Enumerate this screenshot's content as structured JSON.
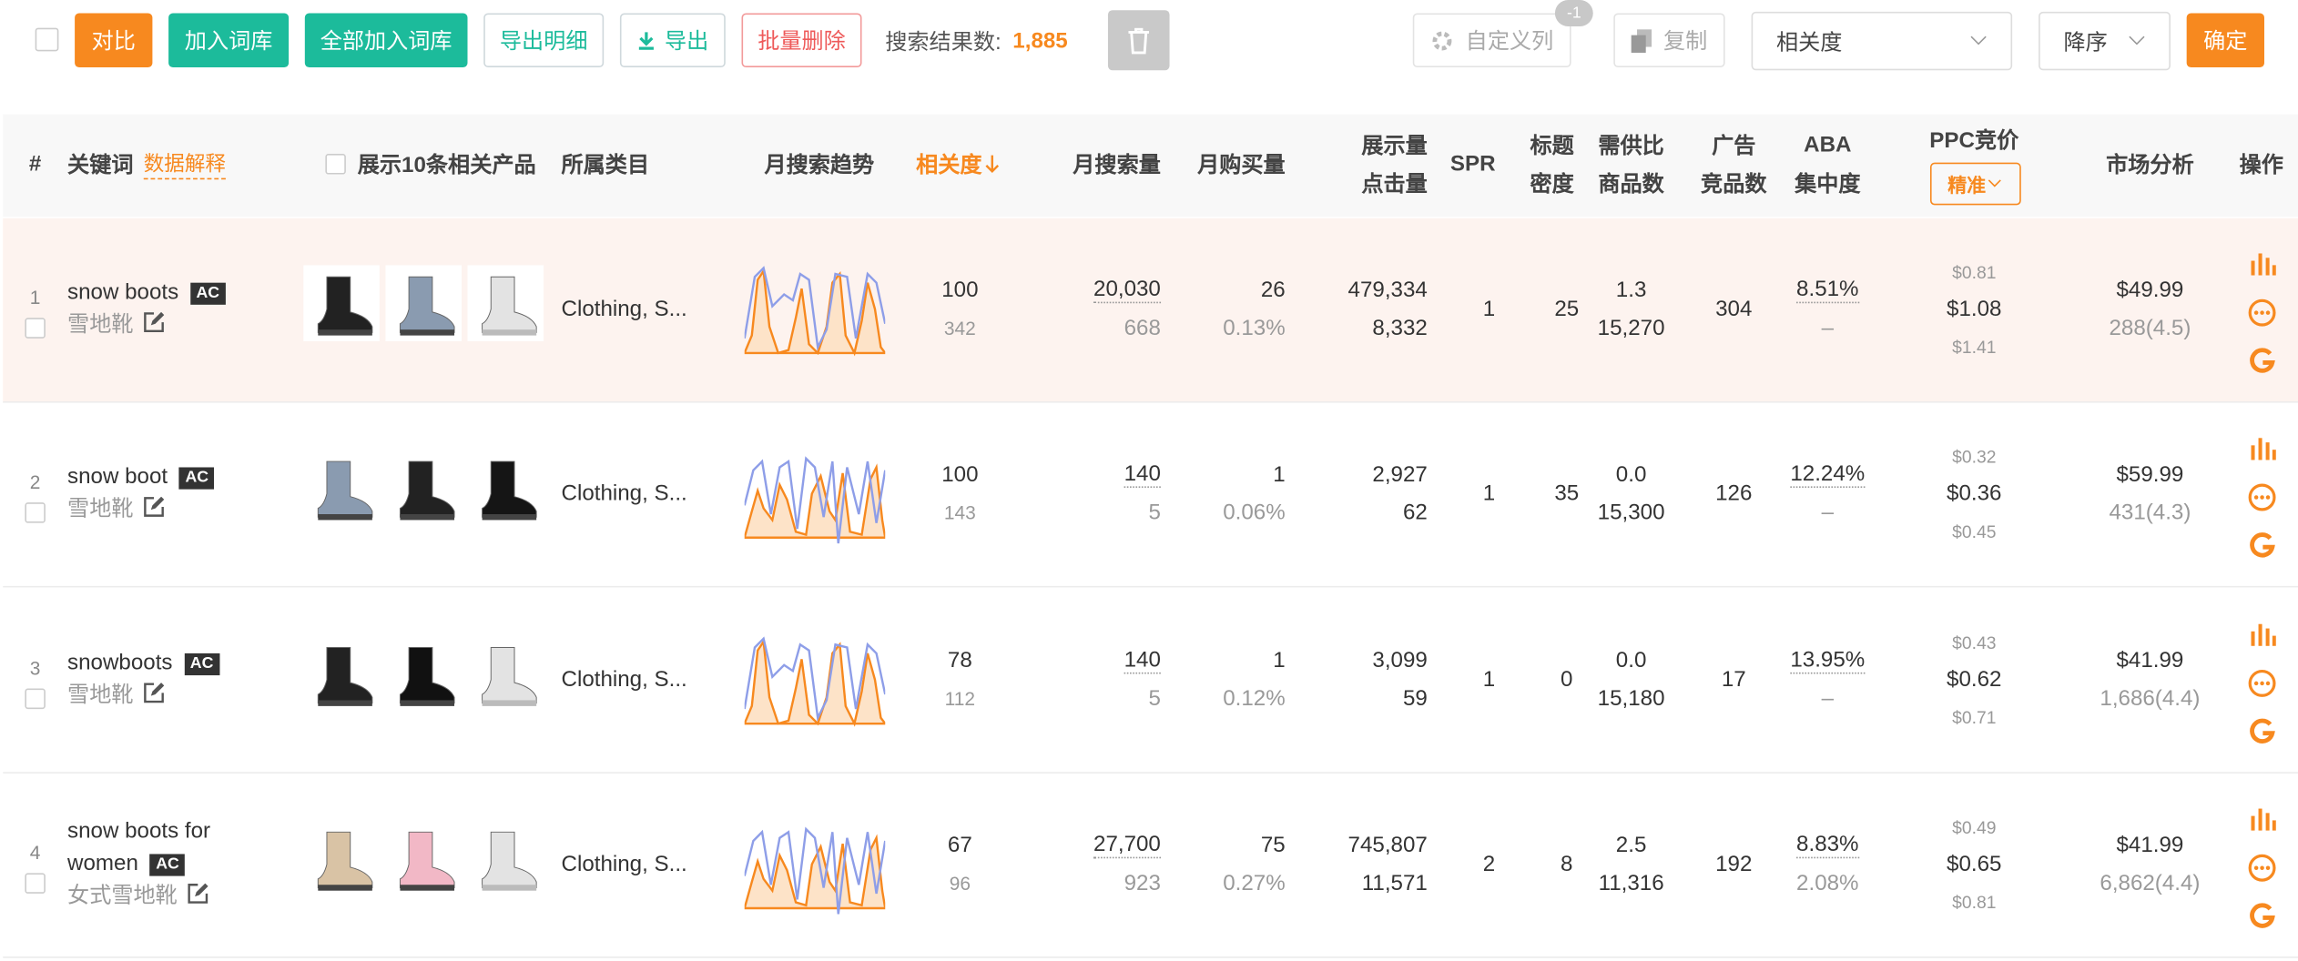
{
  "toolbar": {
    "compare": "对比",
    "add_to_library": "加入词库",
    "add_all_to_library": "全部加入词库",
    "export_details": "导出明细",
    "export": "导出",
    "batch_delete": "批量删除",
    "result_label": "搜索结果数:",
    "result_count": "1,885",
    "custom_columns": "自定义列",
    "custom_columns_badge": "-1",
    "copy": "复制",
    "sort_field": "相关度",
    "sort_order": "降序",
    "confirm": "确定"
  },
  "table": {
    "headers": {
      "index": "#",
      "keyword": "关键词",
      "data_explain": "数据解释",
      "show_products": "展示10条相关产品",
      "category": "所属类目",
      "trend": "月搜索趋势",
      "relevance": "相关度",
      "search_volume": "月搜索量",
      "purchases": "月购买量",
      "impressions": "展示量",
      "clicks": "点击量",
      "spr": "SPR",
      "title_density": [
        "标题",
        "密度"
      ],
      "supply_ratio": [
        "需供比",
        "商品数"
      ],
      "ads": [
        "广告",
        "竞品数"
      ],
      "aba": [
        "ABA",
        "集中度"
      ],
      "ppc": "PPC竞价",
      "ppc_match": "精准",
      "market": "市场分析",
      "actions": "操作"
    },
    "rows": [
      {
        "index": "1",
        "keyword": "snow boots",
        "badge": "AC",
        "translation": "雪地靴",
        "category": "Clothing, S...",
        "relevance": [
          "100",
          "342"
        ],
        "search_volume": [
          "20,030",
          "668"
        ],
        "purchases": [
          "26",
          "0.13%"
        ],
        "impressions_clicks": [
          "479,334",
          "8,332"
        ],
        "spr": "1",
        "title_density": "25",
        "supply_ratio": [
          "1.3",
          "15,270"
        ],
        "ads": "304",
        "aba": [
          "8.51%",
          "–"
        ],
        "ppc": [
          "$0.81",
          "$1.08",
          "$1.41"
        ],
        "market": [
          "$49.99",
          "288(4.5)"
        ]
      },
      {
        "index": "2",
        "keyword": "snow boot",
        "badge": "AC",
        "translation": "雪地靴",
        "category": "Clothing, S...",
        "relevance": [
          "100",
          "143"
        ],
        "search_volume": [
          "140",
          "5"
        ],
        "purchases": [
          "1",
          "0.06%"
        ],
        "impressions_clicks": [
          "2,927",
          "62"
        ],
        "spr": "1",
        "title_density": "35",
        "supply_ratio": [
          "0.0",
          "15,300"
        ],
        "ads": "126",
        "aba": [
          "12.24%",
          "–"
        ],
        "ppc": [
          "$0.32",
          "$0.36",
          "$0.45"
        ],
        "market": [
          "$59.99",
          "431(4.3)"
        ]
      },
      {
        "index": "3",
        "keyword": "snowboots",
        "badge": "AC",
        "translation": "雪地靴",
        "category": "Clothing, S...",
        "relevance": [
          "78",
          "112"
        ],
        "search_volume": [
          "140",
          "5"
        ],
        "purchases": [
          "1",
          "0.12%"
        ],
        "impressions_clicks": [
          "3,099",
          "59"
        ],
        "spr": "1",
        "title_density": "0",
        "supply_ratio": [
          "0.0",
          "15,180"
        ],
        "ads": "17",
        "aba": [
          "13.95%",
          "–"
        ],
        "ppc": [
          "$0.43",
          "$0.62",
          "$0.71"
        ],
        "market": [
          "$41.99",
          "1,686(4.4)"
        ]
      },
      {
        "index": "4",
        "keyword": "snow boots for women",
        "badge": "AC",
        "translation": "女式雪地靴",
        "category": "Clothing, S...",
        "relevance": [
          "67",
          "96"
        ],
        "search_volume": [
          "27,700",
          "923"
        ],
        "purchases": [
          "75",
          "0.27%"
        ],
        "impressions_clicks": [
          "745,807",
          "11,571"
        ],
        "spr": "2",
        "title_density": "8",
        "supply_ratio": [
          "2.5",
          "11,316"
        ],
        "ads": "192",
        "aba": [
          "8.83%",
          "2.08%"
        ],
        "ppc": [
          "$0.49",
          "$0.65",
          "$0.81"
        ],
        "market": [
          "$41.99",
          "6,862(4.4)"
        ]
      }
    ]
  }
}
